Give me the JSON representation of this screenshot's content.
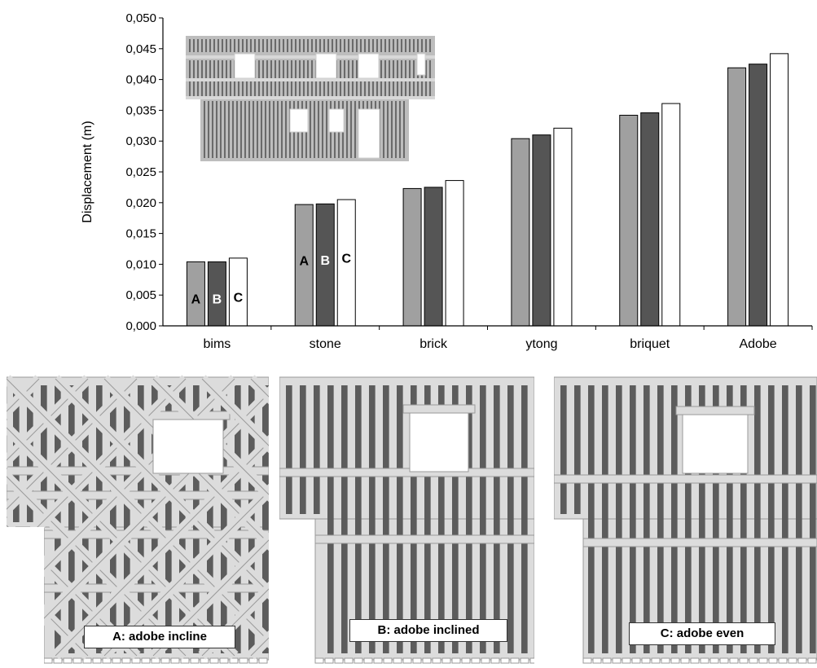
{
  "chart_data": {
    "type": "bar",
    "title": "",
    "xlabel": "",
    "ylabel": "Displacement (m)",
    "ylim": [
      0,
      0.05
    ],
    "yticks": [
      "0,000",
      "0,005",
      "0,010",
      "0,015",
      "0,020",
      "0,025",
      "0,030",
      "0,035",
      "0,040",
      "0,045",
      "0,050"
    ],
    "ytick_values": [
      0,
      0.005,
      0.01,
      0.015,
      0.02,
      0.025,
      0.03,
      0.035,
      0.04,
      0.045,
      0.05
    ],
    "categories": [
      "bims",
      "stone",
      "brick",
      "ytong",
      "briquet",
      "Adobe"
    ],
    "series": [
      {
        "name": "A",
        "color": "#a0a0a0",
        "values": [
          0.0104,
          0.0197,
          0.0223,
          0.0304,
          0.0342,
          0.0419
        ]
      },
      {
        "name": "B",
        "color": "#555555",
        "values": [
          0.0104,
          0.0198,
          0.0225,
          0.031,
          0.0346,
          0.0425
        ]
      },
      {
        "name": "C",
        "color": "#ffffff",
        "values": [
          0.011,
          0.0205,
          0.0236,
          0.0321,
          0.0361,
          0.0442
        ]
      }
    ],
    "grid": false,
    "legend": "none",
    "annotations": {
      "bims": [
        "A",
        "B",
        "C"
      ],
      "stone": [
        "A",
        "B",
        "C"
      ]
    }
  },
  "panels": [
    {
      "caption": "A: adobe incline"
    },
    {
      "caption": "B: adobe inclined"
    },
    {
      "caption": "C: adobe even"
    }
  ]
}
